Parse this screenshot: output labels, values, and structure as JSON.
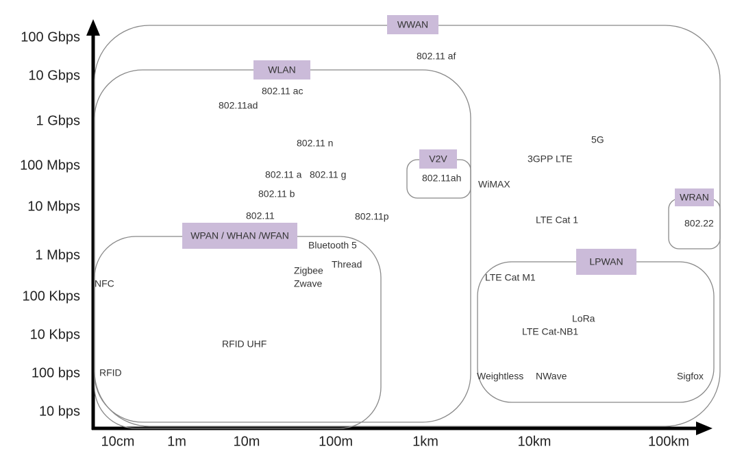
{
  "y_axis": {
    "labels": [
      "100 Gbps",
      "10 Gbps",
      "1 Gbps",
      "100 Mbps",
      "10 Mbps",
      "1 Mbps",
      "100 Kbps",
      "10 Kbps",
      "100 bps",
      "10 bps"
    ]
  },
  "x_axis": {
    "labels": [
      "10cm",
      "1m",
      "10m",
      "100m",
      "1km",
      "10km",
      "100km"
    ]
  },
  "groups": [
    {
      "label": "WWAN"
    },
    {
      "label": "WLAN"
    },
    {
      "label": "V2V"
    },
    {
      "label": "WPAN / WHAN /WFAN"
    },
    {
      "label": "WRAN"
    },
    {
      "label": "LPWAN"
    }
  ],
  "technologies": [
    "802.11 af",
    "802.11 ac",
    "802.11ad",
    "802.11 n",
    "802.11 a",
    "802.11 g",
    "802.11 b",
    "802.11",
    "802.11p",
    "802.11ah",
    "WiMAX",
    "5G",
    "3GPP LTE",
    "LTE Cat 1",
    "802.22",
    "Bluetooth 5",
    "Thread",
    "Zigbee",
    "Zwave",
    "NFC",
    "RFID UHF",
    "RFID",
    "LTE Cat M1",
    "LoRa",
    "LTE Cat-NB1",
    "Weightless",
    "NWave",
    "Sigfox"
  ]
}
